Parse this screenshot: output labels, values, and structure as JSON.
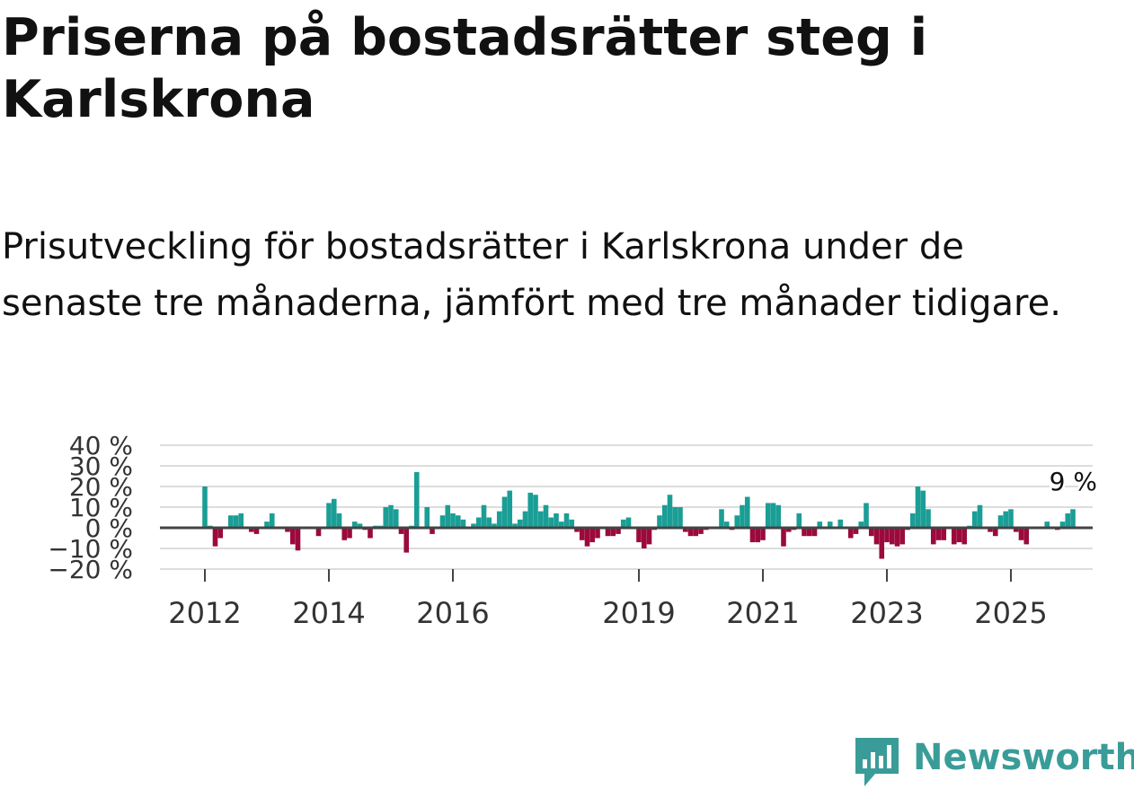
{
  "title": "Priserna på bostadsrätter steg i Karlskrona",
  "subtitle": "Prisutveckling för bostadsrätter i Karlskrona under de senaste tre månaderna, jämfört med tre månader tidigare.",
  "brand": {
    "name": "Newsworthy",
    "color": "#3a9c98"
  },
  "colors": {
    "positive": "#1a9e96",
    "negative": "#9b0a3c",
    "grid": "#dddddd",
    "zero_line": "#444444"
  },
  "chart_data": {
    "type": "bar",
    "title": "Priserna på bostadsrätter steg i Karlskrona",
    "xlabel": "",
    "ylabel": "",
    "ylim": [
      -20,
      40
    ],
    "yticks": [
      -20,
      -10,
      0,
      10,
      20,
      30,
      40
    ],
    "ytick_labels": [
      "−20 %",
      "−10 %",
      "0 %",
      "10 %",
      "20 %",
      "30 %",
      "40 %"
    ],
    "xticks": [
      2012,
      2014,
      2016,
      2019,
      2021,
      2023,
      2025
    ],
    "x_start": "2012-01",
    "x_step": "month",
    "annotation": "9 %",
    "values": [
      20,
      1,
      -9,
      -5,
      0,
      6,
      6,
      7,
      0,
      -2,
      -3,
      0,
      3,
      7,
      0,
      0,
      -2,
      -8,
      -11,
      0,
      0,
      0,
      -4,
      0,
      12,
      14,
      7,
      -6,
      -5,
      3,
      2,
      -1,
      -5,
      1,
      1,
      10,
      11,
      9,
      -3,
      -12,
      1,
      27,
      0,
      10,
      -3,
      0,
      6,
      11,
      7,
      6,
      4,
      0,
      2,
      5,
      11,
      5,
      2,
      8,
      15,
      18,
      2,
      4,
      8,
      17,
      16,
      8,
      11,
      5,
      7,
      3,
      7,
      4,
      -2,
      -6,
      -9,
      -7,
      -5,
      0,
      -4,
      -4,
      -3,
      4,
      5,
      0,
      -7,
      -10,
      -8,
      -1,
      6,
      11,
      16,
      10,
      10,
      -2,
      -4,
      -4,
      -3,
      -1,
      0,
      0,
      9,
      3,
      -1,
      6,
      11,
      15,
      -7,
      -7,
      -6,
      12,
      12,
      11,
      -9,
      -2,
      -1,
      7,
      -4,
      -4,
      -4,
      3,
      0,
      3,
      0,
      4,
      0,
      -5,
      -3,
      3,
      12,
      -4,
      -8,
      -15,
      -7,
      -8,
      -9,
      -8,
      -1,
      7,
      20,
      18,
      9,
      -8,
      -6,
      -6,
      0,
      -8,
      -7,
      -8,
      1,
      8,
      11,
      0,
      -2,
      -4,
      6,
      8,
      9,
      -2,
      -6,
      -8,
      0,
      0,
      0,
      3,
      0,
      -1,
      3,
      7,
      9
    ]
  }
}
